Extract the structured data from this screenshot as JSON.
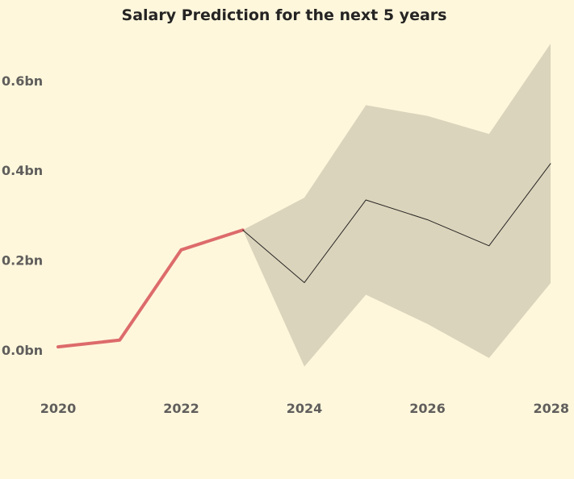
{
  "chart_data": {
    "type": "line",
    "title": "Salary Prediction for the next 5 years",
    "xlabel": "",
    "ylabel": "",
    "grid": false,
    "xlim": [
      2020,
      2028
    ],
    "ylim": [
      -0.1,
      0.7
    ],
    "x_ticks": [
      2020,
      2022,
      2024,
      2026,
      2028
    ],
    "x_tick_labels": [
      "2020",
      "2022",
      "2024",
      "2026",
      "2028"
    ],
    "y_ticks": [
      0.0,
      0.2,
      0.4,
      0.6
    ],
    "y_tick_labels": [
      "0.0bn",
      "0.2bn",
      "0.4bn",
      "0.6bn"
    ],
    "series": [
      {
        "x": [
          2020,
          2021,
          2022,
          2023
        ],
        "values": [
          0.007,
          0.022,
          0.223,
          0.267
        ],
        "color": "#dd6b6b"
      },
      {
        "x": [
          2023,
          2024,
          2025,
          2026,
          2027,
          2028
        ],
        "values": [
          0.267,
          0.15,
          0.334,
          0.29,
          0.232,
          0.415
        ],
        "color": "#252423"
      }
    ],
    "band": {
      "x": [
        2023,
        2024,
        2025,
        2026,
        2027,
        2028
      ],
      "upper": [
        0.267,
        0.339,
        0.545,
        0.521,
        0.481,
        0.682
      ],
      "lower": [
        0.267,
        -0.037,
        0.123,
        0.058,
        -0.018,
        0.149
      ],
      "color": "#dbd4bc"
    },
    "colors": {
      "background": "#fef7dc",
      "title": "#252423",
      "ticks": "#605e5c"
    }
  }
}
